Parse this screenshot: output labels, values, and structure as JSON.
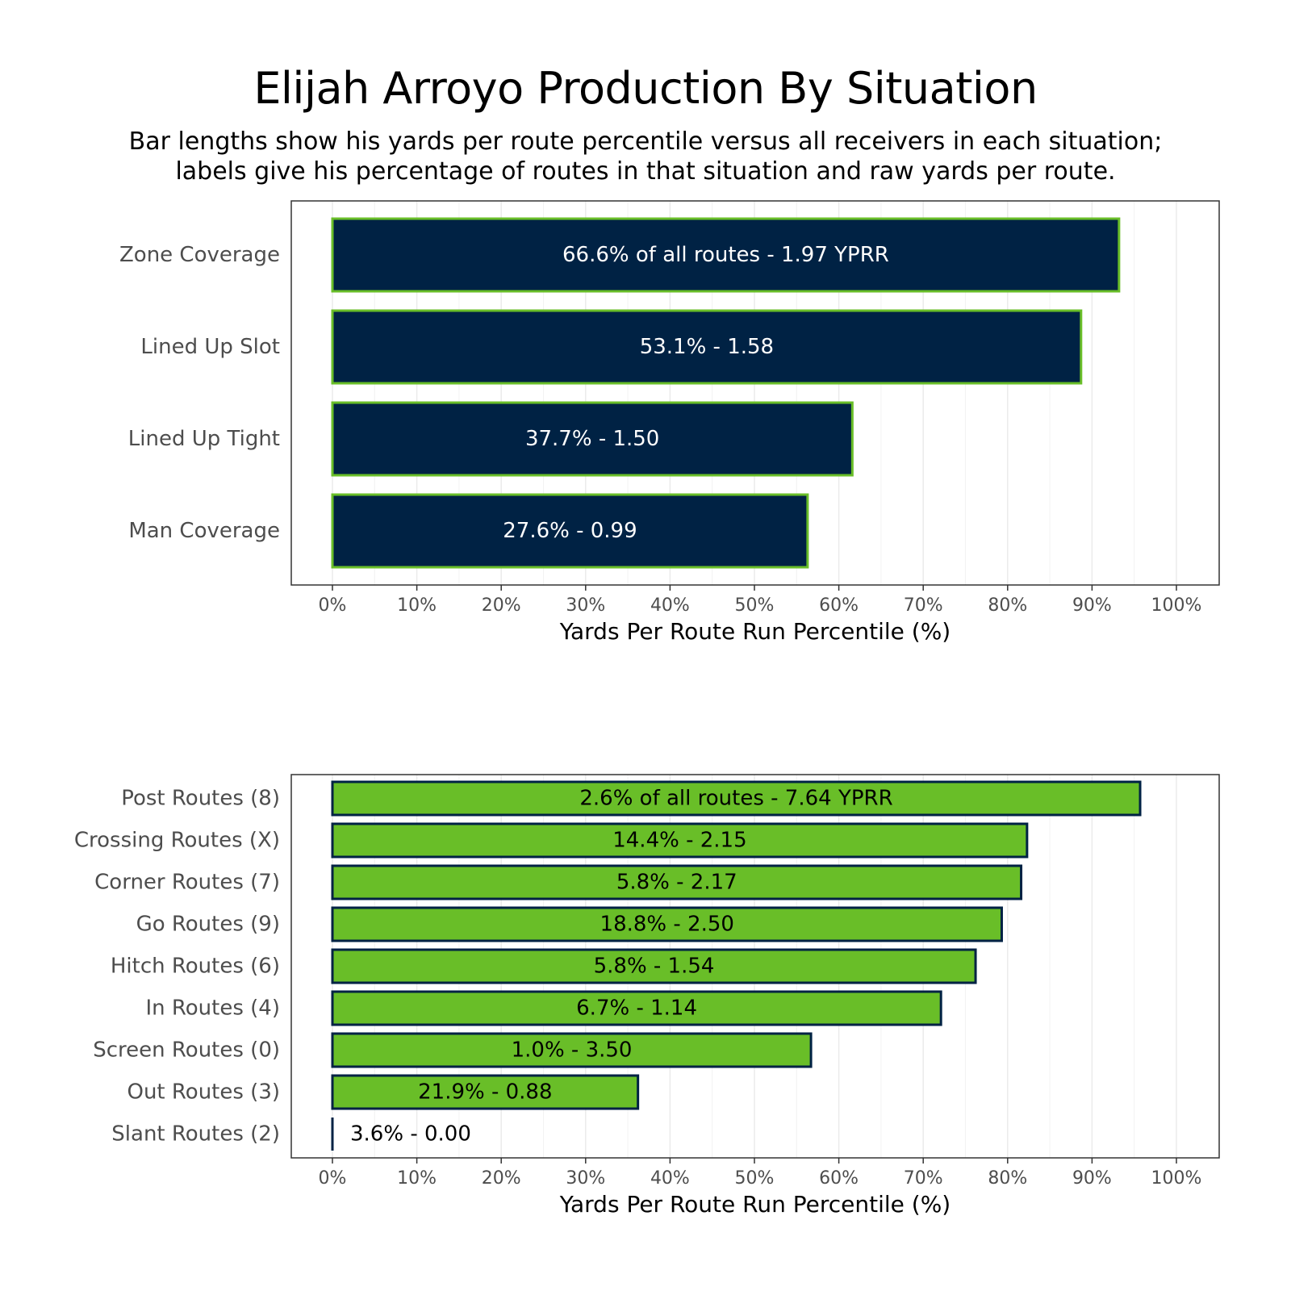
{
  "title": "Elijah Arroyo Production By Situation",
  "subtitle_lines": [
    "Bar lengths show his yards per route percentile versus all receivers in each situation;",
    "labels give his percentage of routes in that situation and raw yards per route."
  ],
  "colors": {
    "navy": "#002244",
    "green": "#69BE28",
    "panel_border": "#333333",
    "grid": "#ebebeb"
  },
  "chart_data": [
    {
      "type": "bar",
      "orientation": "horizontal",
      "categories": [
        "Zone Coverage",
        "Lined Up Slot",
        "Lined Up Tight",
        "Man Coverage"
      ],
      "values": [
        93.2,
        88.7,
        61.6,
        56.3
      ],
      "labels": [
        "66.6% of all routes - 1.97 YPRR",
        "53.1% - 1.58",
        "37.7% - 1.50",
        "27.6% - 0.99"
      ],
      "xlabel": "Yards Per Route Run Percentile (%)",
      "xlim": [
        0,
        100
      ],
      "xticks": [
        "0%",
        "10%",
        "20%",
        "30%",
        "40%",
        "50%",
        "60%",
        "70%",
        "80%",
        "90%",
        "100%"
      ],
      "bar_fill": "#002244",
      "bar_outline": "#69BE28",
      "label_color": "#ffffff",
      "grid": true
    },
    {
      "type": "bar",
      "orientation": "horizontal",
      "categories": [
        "Post Routes (8)",
        "Crossing Routes (X)",
        "Corner Routes (7)",
        "Go Routes (9)",
        "Hitch Routes (6)",
        "In Routes (4)",
        "Screen Routes (0)",
        "Out Routes (3)",
        "Slant Routes (2)"
      ],
      "values": [
        95.7,
        82.3,
        81.6,
        79.3,
        76.2,
        72.1,
        56.7,
        36.2,
        0
      ],
      "labels": [
        "2.6% of all routes - 7.64 YPRR",
        "14.4% - 2.15",
        "5.8% - 2.17",
        "18.8% - 2.50",
        "5.8% - 1.54",
        "6.7% - 1.14",
        "1.0% - 3.50",
        "21.9% - 0.88",
        "3.6% - 0.00"
      ],
      "xlabel": "Yards Per Route Run Percentile (%)",
      "xlim": [
        0,
        100
      ],
      "xticks": [
        "0%",
        "10%",
        "20%",
        "30%",
        "40%",
        "50%",
        "60%",
        "70%",
        "80%",
        "90%",
        "100%"
      ],
      "bar_fill": "#69BE28",
      "bar_outline": "#002244",
      "label_color": "#000000",
      "grid": true
    }
  ]
}
